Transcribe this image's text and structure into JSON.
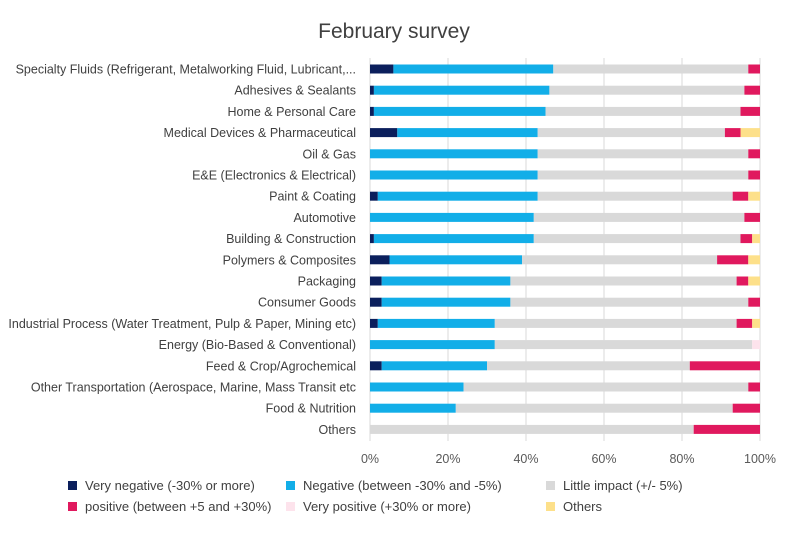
{
  "chart_data": {
    "type": "bar",
    "orientation": "horizontal",
    "stacked": true,
    "percent": true,
    "title": "February survey",
    "xlabel": "",
    "ylabel": "",
    "xlim": [
      0,
      100
    ],
    "x_ticks": [
      "0%",
      "20%",
      "40%",
      "60%",
      "80%",
      "100%"
    ],
    "grid": "vertical",
    "legend_position": "bottom",
    "categories": [
      "Specialty Fluids (Refrigerant, Metalworking Fluid, Lubricant,...",
      "Adhesives & Sealants",
      "Home & Personal Care",
      "Medical Devices & Pharmaceutical",
      "Oil & Gas",
      "E&E (Electronics & Electrical)",
      "Paint & Coating",
      "Automotive",
      "Building & Construction",
      "Polymers & Composites",
      "Packaging",
      "Consumer Goods",
      "Industrial Process (Water Treatment, Pulp & Paper, Mining etc)",
      "Energy (Bio-Based & Conventional)",
      "Feed & Crop/Agrochemical",
      "Other Transportation (Aerospace, Marine, Mass Transit etc",
      "Food & Nutrition",
      "Others"
    ],
    "series": [
      {
        "name": "Very negative (-30% or more)",
        "color": "#0b1f5c",
        "values": [
          6,
          1,
          1,
          7,
          0,
          0,
          2,
          0,
          1,
          5,
          3,
          3,
          2,
          0,
          3,
          0,
          0,
          0
        ]
      },
      {
        "name": "Negative (between -30% and -5%)",
        "color": "#12aee8",
        "values": [
          41,
          45,
          44,
          36,
          43,
          43,
          41,
          42,
          41,
          34,
          33,
          33,
          30,
          32,
          27,
          24,
          22,
          0
        ]
      },
      {
        "name": "Little impact (+/- 5%)",
        "color": "#d9d9d9",
        "values": [
          50,
          50,
          50,
          48,
          54,
          54,
          50,
          54,
          53,
          50,
          58,
          61,
          62,
          66,
          52,
          73,
          71,
          83
        ]
      },
      {
        "name": "positive (between +5 and +30%)",
        "color": "#e0195e",
        "values": [
          3,
          4,
          5,
          4,
          3,
          3,
          4,
          4,
          3,
          8,
          3,
          3,
          4,
          0,
          18,
          3,
          7,
          17
        ]
      },
      {
        "name": "Very positive (+30% or more)",
        "color": "#fde3ec",
        "values": [
          0,
          0,
          0,
          0,
          0,
          0,
          0,
          0,
          0,
          0,
          0,
          0,
          0,
          2,
          0,
          0,
          0,
          0
        ]
      },
      {
        "name": "Others",
        "color": "#fde08a",
        "values": [
          0,
          0,
          0,
          5,
          0,
          0,
          3,
          0,
          2,
          3,
          3,
          0,
          2,
          0,
          0,
          0,
          0,
          0
        ]
      }
    ]
  }
}
